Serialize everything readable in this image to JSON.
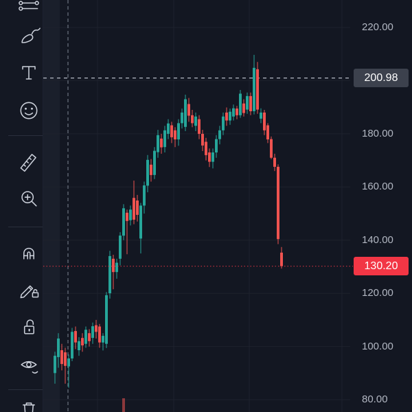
{
  "app": {
    "kind": "trading-chart"
  },
  "toolbar": {
    "items": [
      {
        "type": "tool",
        "icon": "lines-icon",
        "partial": "top"
      },
      {
        "type": "tool",
        "icon": "brush-icon"
      },
      {
        "type": "tool",
        "icon": "text-icon"
      },
      {
        "type": "tool",
        "icon": "emoji-icon"
      },
      {
        "type": "divider"
      },
      {
        "type": "tool",
        "icon": "ruler-icon"
      },
      {
        "type": "tool",
        "icon": "zoom-in-icon"
      },
      {
        "type": "divider"
      },
      {
        "type": "tool",
        "icon": "magnet-icon"
      },
      {
        "type": "tool",
        "icon": "pencil-lock-icon"
      },
      {
        "type": "tool",
        "icon": "lock-icon"
      },
      {
        "type": "tool",
        "icon": "eye-icon"
      },
      {
        "type": "divider"
      },
      {
        "type": "tool",
        "icon": "trash-icon",
        "partial": "bottom"
      }
    ]
  },
  "price_axis": {
    "tick_labels": [
      "220.00",
      "180.00",
      "160.00",
      "140.00",
      "120.00",
      "100.00",
      "80.00"
    ],
    "tick_prices": [
      220,
      180,
      160,
      140,
      120,
      100,
      80
    ],
    "level_badge": {
      "text": "200.98",
      "price": 200.98,
      "bg_color": "#3c414d",
      "text_color": "#ffffff"
    },
    "last_price_badge": {
      "text": "130.20",
      "price": 130.2,
      "bg_color": "#f23645",
      "text_color": "#ffffff"
    }
  },
  "chart_data": {
    "type": "candlestick",
    "title": "",
    "xlabel": "",
    "ylabel": "price",
    "x_axis_labels_visible": false,
    "y_axis_range": [
      75,
      223
    ],
    "y_tick_interval": 20,
    "grid": "on",
    "legend": "none",
    "up_color": "#26a69a",
    "down_color": "#ef5350",
    "background_color": "#131722",
    "grid_color": "#1e222d",
    "price_levels": {
      "dashed_level_line": 200.98,
      "last_price_dotted_line": 130.2
    },
    "annotations": {
      "vertical_dashed_line_at_candle_index": 4,
      "partial_red_bar_bottom": {
        "candle_index": 20,
        "color": "#ef5350"
      }
    },
    "candles_ohlc": [
      [
        90,
        98,
        86,
        96.5
      ],
      [
        96,
        105,
        92,
        103
      ],
      [
        98.6,
        101,
        91,
        93.4
      ],
      [
        97.8,
        99.5,
        86,
        92.7
      ],
      [
        92.5,
        97,
        84.5,
        95.5
      ],
      [
        95.5,
        107,
        94.5,
        105.5
      ],
      [
        105.8,
        107.5,
        99,
        101.5
      ],
      [
        98.6,
        103.5,
        96.5,
        102
      ],
      [
        103.2,
        105,
        98,
        100.4
      ],
      [
        101,
        107.5,
        99.5,
        106.3
      ],
      [
        105,
        106.5,
        100,
        102
      ],
      [
        103.2,
        109,
        101,
        107.6
      ],
      [
        108,
        110,
        103,
        105.5
      ],
      [
        107.5,
        108.5,
        99.5,
        101.5
      ],
      [
        101.5,
        105,
        98.5,
        104
      ],
      [
        101,
        120.5,
        99.4,
        119.3
      ],
      [
        120,
        136,
        118,
        134
      ],
      [
        133,
        134.5,
        121.5,
        128
      ],
      [
        128,
        133,
        125.5,
        131.5
      ],
      [
        133,
        143,
        130.5,
        141.7
      ],
      [
        141.7,
        153.5,
        140,
        152
      ],
      [
        150.3,
        151.5,
        134.7,
        147.2
      ],
      [
        147.5,
        153,
        145.5,
        151.5
      ],
      [
        155.9,
        162.4,
        146,
        147.7
      ],
      [
        154.9,
        157,
        147,
        149.5
      ],
      [
        140.6,
        154,
        135,
        153
      ],
      [
        153,
        162,
        150,
        160.6
      ],
      [
        160.5,
        172,
        158,
        170.2
      ],
      [
        168.4,
        170.5,
        162,
        164.5
      ],
      [
        164.5,
        175,
        163,
        173.6
      ],
      [
        173.1,
        181.5,
        171,
        179.5
      ],
      [
        178.2,
        180,
        172.5,
        174.9
      ],
      [
        175,
        183,
        173,
        181.3
      ],
      [
        180,
        185.5,
        178,
        183.9
      ],
      [
        183.2,
        184.5,
        176.5,
        178.7
      ],
      [
        181.3,
        182.5,
        175,
        177.9
      ],
      [
        177.9,
        185.5,
        175.5,
        184
      ],
      [
        184,
        189.5,
        182,
        188
      ],
      [
        182.6,
        194.7,
        181,
        193
      ],
      [
        191.2,
        193.5,
        184.5,
        186.8
      ],
      [
        187,
        189,
        182.5,
        184
      ],
      [
        183,
        188,
        181,
        186.5
      ],
      [
        185.5,
        187,
        178,
        180
      ],
      [
        180,
        181.5,
        173.5,
        175.6
      ],
      [
        177,
        178.5,
        170,
        172
      ],
      [
        173,
        174.5,
        167.5,
        169.5
      ],
      [
        169.5,
        174.5,
        167,
        173
      ],
      [
        173,
        179.5,
        171,
        178
      ],
      [
        178,
        183,
        176,
        181.3
      ],
      [
        181.3,
        188,
        179.5,
        186.5
      ],
      [
        188,
        189.9,
        183,
        185
      ],
      [
        185,
        189.5,
        183.4,
        188.3
      ],
      [
        186.5,
        191,
        185,
        189.6
      ],
      [
        189.5,
        190.5,
        185.5,
        187
      ],
      [
        187,
        196.5,
        186,
        195.1
      ],
      [
        191.4,
        193,
        186.5,
        187.8
      ],
      [
        189.1,
        195.5,
        187.5,
        194.2
      ],
      [
        194.2,
        195.5,
        187,
        188.5
      ],
      [
        188.5,
        209.7,
        187.3,
        204.8
      ],
      [
        204.3,
        207,
        187.5,
        189.1
      ],
      [
        185.7,
        189.6,
        184,
        188
      ],
      [
        188,
        189,
        179.5,
        181.3
      ],
      [
        183.2,
        184,
        176.5,
        177.9
      ],
      [
        178,
        179,
        170.5,
        171
      ],
      [
        171,
        172.5,
        166,
        167.6
      ],
      [
        167.6,
        168.5,
        138.5,
        140.4
      ],
      [
        135.3,
        137.4,
        129.3,
        130.2
      ]
    ]
  }
}
